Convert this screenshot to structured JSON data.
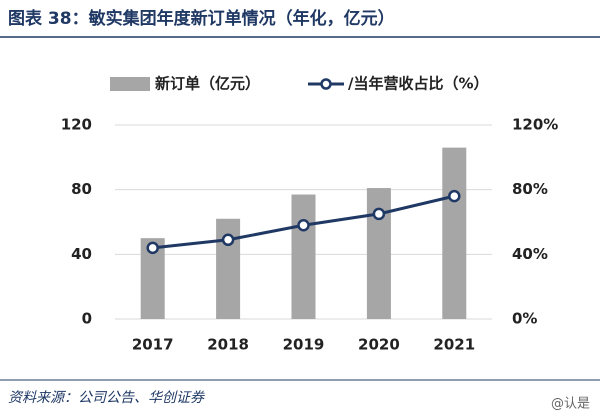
{
  "chart_data": {
    "type": "bar-line",
    "title": "图表 38：敏实集团年度新订单情况（年化，亿元）",
    "categories": [
      "2017",
      "2018",
      "2019",
      "2020",
      "2021"
    ],
    "series": [
      {
        "name": "新订单（亿元）",
        "type": "bar",
        "color": "#a6a6a6",
        "values": [
          50,
          62,
          77,
          81,
          106
        ]
      },
      {
        "name": "/当年营收占比（%）",
        "type": "line",
        "axis": "y2",
        "color": "#1f3864",
        "values": [
          44,
          49,
          58,
          65,
          76
        ]
      }
    ],
    "ylim": [
      0,
      120
    ],
    "yticks": [
      0,
      40,
      80,
      120
    ],
    "y2lim": [
      0,
      120
    ],
    "y2ticks": [
      {
        "value": 0,
        "label": "0%"
      },
      {
        "value": 40,
        "label": "40%"
      },
      {
        "value": 80,
        "label": "80%"
      },
      {
        "value": 120,
        "label": "120%"
      }
    ],
    "grid": true,
    "source": "资料来源：公司公告、华创证券",
    "watermark": "@认是"
  }
}
